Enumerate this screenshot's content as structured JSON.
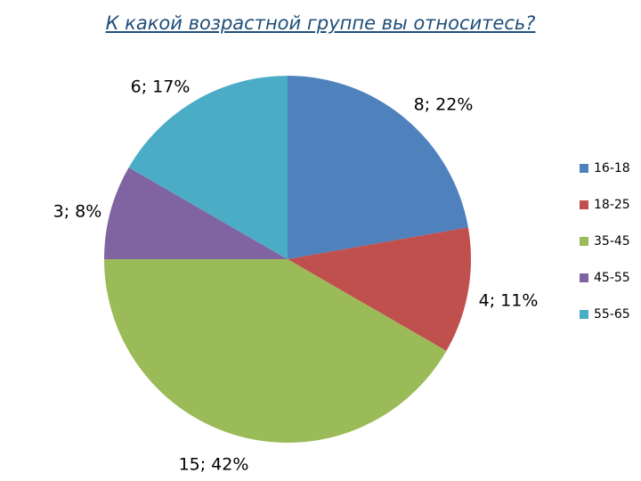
{
  "chart_data": {
    "type": "pie",
    "title": "К какой возрастной группе вы относитесь?",
    "categories": [
      "16-18",
      "18-25",
      "35-45",
      "45-55",
      "55-65"
    ],
    "values": [
      8,
      4,
      15,
      3,
      6
    ],
    "percents": [
      "22%",
      "11%",
      "42%",
      "8%",
      "17%"
    ],
    "data_labels": [
      "8; 22%",
      "4; 11%",
      "15; 42%",
      "3; 8%",
      "6; 17%"
    ],
    "colors": [
      "#4f81bd",
      "#c0504d",
      "#9bbb59",
      "#8064a2",
      "#4bacc6"
    ],
    "legend_position": "right",
    "start_angle_deg": 0,
    "direction": "clockwise"
  }
}
